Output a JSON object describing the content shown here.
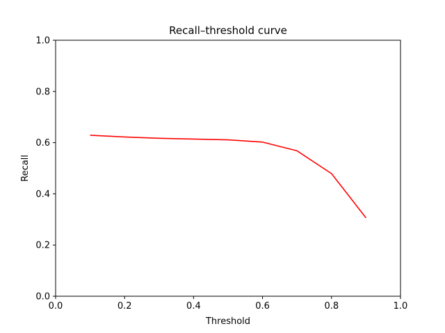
{
  "chart_data": {
    "type": "line",
    "title": "Recall–threshold curve",
    "xlabel": "Threshold",
    "ylabel": "Recall",
    "xlim": [
      0,
      1
    ],
    "ylim": [
      0,
      1
    ],
    "xticks": [
      "0.0",
      "0.2",
      "0.4",
      "0.6",
      "0.8",
      "1.0"
    ],
    "yticks": [
      "0.0",
      "0.2",
      "0.4",
      "0.6",
      "0.8",
      "1.0"
    ],
    "grid": false,
    "series": [
      {
        "color": "#ff0000",
        "x": [
          0.1,
          0.2,
          0.3,
          0.4,
          0.5,
          0.6,
          0.7,
          0.8,
          0.9
        ],
        "y": [
          0.629,
          0.622,
          0.617,
          0.614,
          0.611,
          0.602,
          0.568,
          0.479,
          0.306
        ]
      }
    ]
  }
}
